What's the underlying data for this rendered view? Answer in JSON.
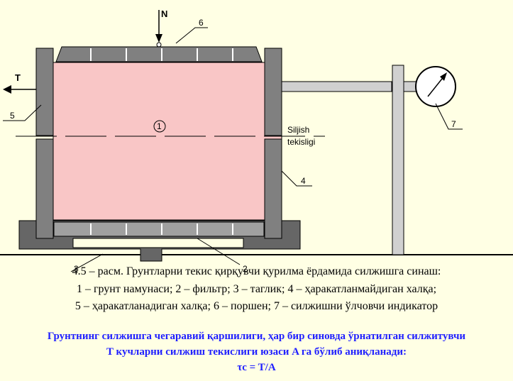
{
  "diagram": {
    "labels": {
      "n": "N",
      "t": "T",
      "p1": "1",
      "p2": "2",
      "p3": "3",
      "p4": "4",
      "p5": "5",
      "p6": "6",
      "p7": "7",
      "plane_line1": "Siljish",
      "plane_line2": "tekisligi"
    },
    "colors": {
      "soil": "#f9c6c6",
      "metal": "#808080",
      "base": "#666666",
      "filter": "#a0a0a0",
      "background": "#ffffe4"
    }
  },
  "caption": {
    "line1": "4.5 – расм.   Грунтларни текис  қирқувчи қурилма ёрдамида силжишга синаш:",
    "line2": "1 – грунт намунаси;  2 – фильтр;  3 – таглик;  4 – ҳаракатланмайдиган  халқа;",
    "line3": "5 – ҳаракатланадиган халқа;  6 – поршен;  7 – силжишни  ўлчовчи индикатор"
  },
  "note": {
    "line1": "Грунтнинг силжишга чегаравий қаршилиги, ҳар бир синовда ўрнатилган силжитувчи",
    "line2": "T  кучларни силжиш текислиги юзаси  A га бўлиб аниқланади:",
    "formula": "τc = T/A"
  }
}
